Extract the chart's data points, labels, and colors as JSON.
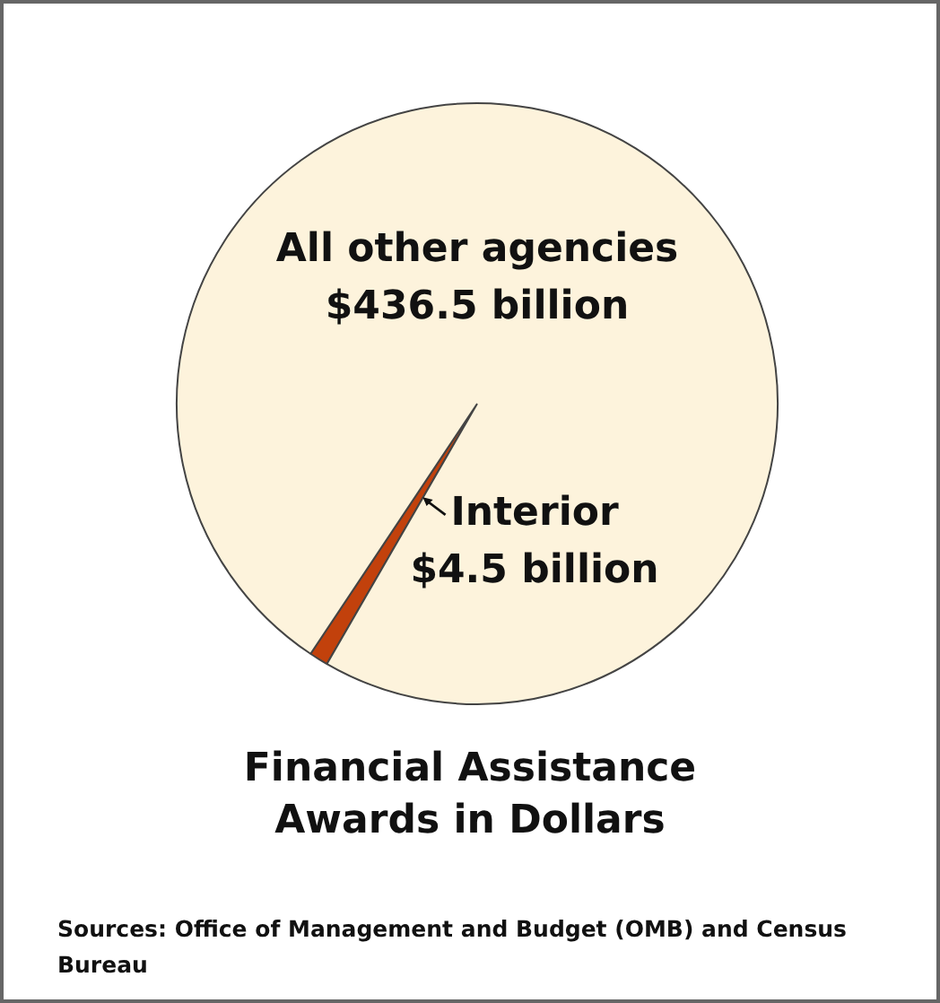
{
  "chart_data": {
    "type": "pie",
    "title": "Financial Assistance\nAwards in Dollars",
    "categories": [
      "Interior",
      "All other agencies"
    ],
    "values": [
      4.5,
      436.5
    ],
    "colors": [
      "#c2410c",
      "#fdf3dc"
    ],
    "value_labels": [
      "$4.5 billion",
      "$436.5 billion"
    ],
    "annotations": [
      "Sources: Office of Management and Budget (OMB) and Census Bureau"
    ]
  }
}
